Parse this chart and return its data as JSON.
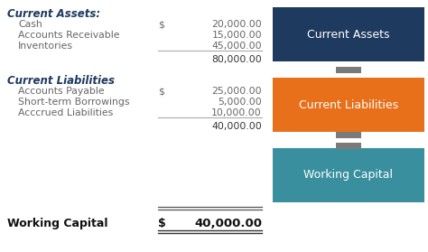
{
  "background_color": "#ffffff",
  "left_section": {
    "current_assets_header": "Current Assets:",
    "current_assets_items": [
      {
        "label": "Cash",
        "dollar": "$",
        "value": "20,000.00"
      },
      {
        "label": "Accounts Receivable",
        "dollar": "",
        "value": "15,000.00"
      },
      {
        "label": "Inventories",
        "dollar": "",
        "value": "45,000.00"
      },
      {
        "label": "",
        "dollar": "",
        "value": "80,000.00"
      }
    ],
    "current_liabilities_header": "Current Liabilities",
    "current_liabilities_items": [
      {
        "label": "Accounts Payable",
        "dollar": "$",
        "value": "25,000.00"
      },
      {
        "label": "Short-term Borrowings",
        "dollar": "",
        "value": "5,000.00"
      },
      {
        "label": "Acccrued Liabilities",
        "dollar": "",
        "value": "10,000.00"
      },
      {
        "label": "",
        "dollar": "",
        "value": "40,000.00"
      }
    ],
    "working_capital_label": "Working Capital",
    "working_capital_dollar": "$",
    "working_capital_value": "40,000.00"
  },
  "right_section": {
    "boxes": [
      {
        "label": "Current Assets",
        "color": "#1e3a5f",
        "text_color": "#ffffff"
      },
      {
        "label": "Current Liabilities",
        "color": "#e8701a",
        "text_color": "#ffffff"
      },
      {
        "label": "Working Capital",
        "color": "#3a8f9e",
        "text_color": "#ffffff"
      }
    ],
    "symbol_color": "#7a7a7a"
  },
  "header_color": "#1e3a5f",
  "item_color": "#666666",
  "total_color": "#333333",
  "wc_label_color": "#111111"
}
